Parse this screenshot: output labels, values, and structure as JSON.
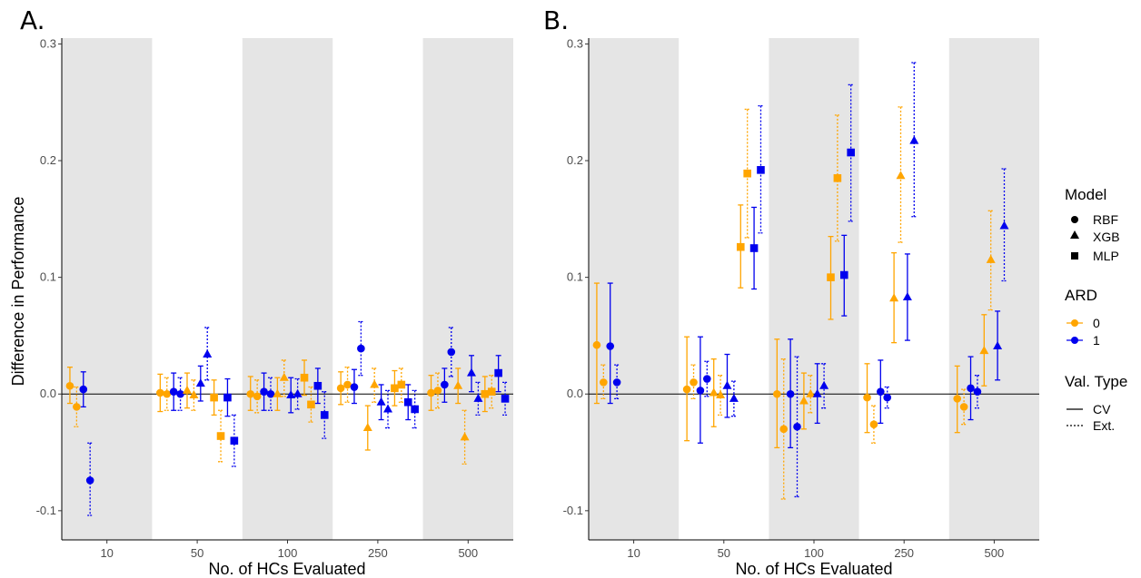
{
  "legend": {
    "model_title": "Model",
    "models": [
      {
        "label": "RBF",
        "shape": "circle"
      },
      {
        "label": "XGB",
        "shape": "triangle"
      },
      {
        "label": "MLP",
        "shape": "square"
      }
    ],
    "ard_title": "ARD",
    "ard": [
      {
        "label": "0",
        "color": "#FFA500"
      },
      {
        "label": "1",
        "color": "#0000EE"
      }
    ],
    "val_title": "Val. Type",
    "val": [
      {
        "label": "CV",
        "dash": "solid"
      },
      {
        "label": "Ext.",
        "dash": "dotted"
      }
    ]
  },
  "chart_data": [
    {
      "type": "scatter",
      "panel_tag": "A.",
      "xlabel": "No. of HCs Evaluated",
      "ylabel": "Difference in Performance",
      "categories": [
        "10",
        "50",
        "100",
        "250",
        "500"
      ],
      "ylim": [
        -0.125,
        0.305
      ],
      "yticks": [
        -0.1,
        0.0,
        0.1,
        0.2,
        0.3
      ],
      "ytick_labels": [
        "-0.1",
        "0.0",
        "0.1",
        "0.2",
        "0.3"
      ],
      "hline": 0,
      "series": [
        {
          "model": "RBF",
          "ard": "0",
          "val": "CV",
          "points": [
            {
              "x": 0,
              "y": 0.007,
              "lo": -0.008,
              "hi": 0.023
            },
            {
              "x": 1,
              "y": 0.001,
              "lo": -0.015,
              "hi": 0.017
            },
            {
              "x": 2,
              "y": 0.0,
              "lo": -0.014,
              "hi": 0.015
            },
            {
              "x": 3,
              "y": 0.005,
              "lo": -0.009,
              "hi": 0.019
            },
            {
              "x": 4,
              "y": 0.001,
              "lo": -0.014,
              "hi": 0.016
            }
          ]
        },
        {
          "model": "RBF",
          "ard": "0",
          "val": "Ext.",
          "points": [
            {
              "x": 0,
              "y": -0.011,
              "lo": -0.028,
              "hi": 0.006
            },
            {
              "x": 1,
              "y": 0.0,
              "lo": -0.014,
              "hi": 0.014
            },
            {
              "x": 2,
              "y": -0.002,
              "lo": -0.016,
              "hi": 0.012
            },
            {
              "x": 3,
              "y": 0.008,
              "lo": -0.007,
              "hi": 0.023
            },
            {
              "x": 4,
              "y": 0.003,
              "lo": -0.012,
              "hi": 0.018
            }
          ]
        },
        {
          "model": "RBF",
          "ard": "1",
          "val": "CV",
          "points": [
            {
              "x": 0,
              "y": 0.004,
              "lo": -0.011,
              "hi": 0.019
            },
            {
              "x": 1,
              "y": 0.002,
              "lo": -0.014,
              "hi": 0.018
            },
            {
              "x": 2,
              "y": 0.002,
              "lo": -0.014,
              "hi": 0.018
            },
            {
              "x": 3,
              "y": 0.006,
              "lo": -0.008,
              "hi": 0.021
            },
            {
              "x": 4,
              "y": 0.008,
              "lo": -0.007,
              "hi": 0.022
            }
          ]
        },
        {
          "model": "RBF",
          "ard": "1",
          "val": "Ext.",
          "points": [
            {
              "x": 0,
              "y": -0.074,
              "lo": -0.104,
              "hi": -0.042
            },
            {
              "x": 1,
              "y": 0.0,
              "lo": -0.014,
              "hi": 0.014
            },
            {
              "x": 2,
              "y": 0.0,
              "lo": -0.014,
              "hi": 0.014
            },
            {
              "x": 3,
              "y": 0.039,
              "lo": 0.016,
              "hi": 0.062
            },
            {
              "x": 4,
              "y": 0.036,
              "lo": 0.015,
              "hi": 0.057
            }
          ]
        },
        {
          "model": "XGB",
          "ard": "0",
          "val": "CV",
          "points": [
            {
              "x": 1,
              "y": 0.003,
              "lo": -0.012,
              "hi": 0.018
            },
            {
              "x": 2,
              "y": 0.0,
              "lo": -0.014,
              "hi": 0.014
            },
            {
              "x": 3,
              "y": -0.029,
              "lo": -0.048,
              "hi": -0.01
            },
            {
              "x": 4,
              "y": 0.007,
              "lo": -0.008,
              "hi": 0.022
            }
          ]
        },
        {
          "model": "XGB",
          "ard": "0",
          "val": "Ext.",
          "points": [
            {
              "x": 1,
              "y": -0.001,
              "lo": -0.014,
              "hi": 0.012
            },
            {
              "x": 2,
              "y": 0.014,
              "lo": -0.002,
              "hi": 0.029
            },
            {
              "x": 3,
              "y": 0.008,
              "lo": -0.007,
              "hi": 0.022
            },
            {
              "x": 4,
              "y": -0.037,
              "lo": -0.06,
              "hi": -0.014
            }
          ]
        },
        {
          "model": "XGB",
          "ard": "1",
          "val": "CV",
          "points": [
            {
              "x": 1,
              "y": 0.009,
              "lo": -0.006,
              "hi": 0.024
            },
            {
              "x": 2,
              "y": -0.001,
              "lo": -0.016,
              "hi": 0.014
            },
            {
              "x": 3,
              "y": -0.007,
              "lo": -0.022,
              "hi": 0.008
            },
            {
              "x": 4,
              "y": 0.018,
              "lo": 0.002,
              "hi": 0.033
            }
          ]
        },
        {
          "model": "XGB",
          "ard": "1",
          "val": "Ext.",
          "points": [
            {
              "x": 1,
              "y": 0.034,
              "lo": 0.012,
              "hi": 0.057
            },
            {
              "x": 2,
              "y": 0.0,
              "lo": -0.013,
              "hi": 0.013
            },
            {
              "x": 3,
              "y": -0.013,
              "lo": -0.029,
              "hi": 0.003
            },
            {
              "x": 4,
              "y": -0.004,
              "lo": -0.018,
              "hi": 0.01
            }
          ]
        },
        {
          "model": "MLP",
          "ard": "0",
          "val": "CV",
          "points": [
            {
              "x": 1,
              "y": -0.003,
              "lo": -0.018,
              "hi": 0.012
            },
            {
              "x": 2,
              "y": 0.014,
              "lo": -0.001,
              "hi": 0.029
            },
            {
              "x": 3,
              "y": 0.005,
              "lo": -0.01,
              "hi": 0.02
            },
            {
              "x": 4,
              "y": 0.0,
              "lo": -0.015,
              "hi": 0.015
            }
          ]
        },
        {
          "model": "MLP",
          "ard": "0",
          "val": "Ext.",
          "points": [
            {
              "x": 1,
              "y": -0.036,
              "lo": -0.058,
              "hi": -0.014
            },
            {
              "x": 2,
              "y": -0.009,
              "lo": -0.024,
              "hi": 0.006
            },
            {
              "x": 3,
              "y": 0.008,
              "lo": -0.007,
              "hi": 0.022
            },
            {
              "x": 4,
              "y": 0.002,
              "lo": -0.012,
              "hi": 0.016
            }
          ]
        },
        {
          "model": "MLP",
          "ard": "1",
          "val": "CV",
          "points": [
            {
              "x": 1,
              "y": -0.003,
              "lo": -0.019,
              "hi": 0.013
            },
            {
              "x": 2,
              "y": 0.007,
              "lo": -0.008,
              "hi": 0.022
            },
            {
              "x": 3,
              "y": -0.007,
              "lo": -0.022,
              "hi": 0.008
            },
            {
              "x": 4,
              "y": 0.018,
              "lo": 0.002,
              "hi": 0.033
            }
          ]
        },
        {
          "model": "MLP",
          "ard": "1",
          "val": "Ext.",
          "points": [
            {
              "x": 1,
              "y": -0.04,
              "lo": -0.062,
              "hi": -0.018
            },
            {
              "x": 2,
              "y": -0.018,
              "lo": -0.038,
              "hi": 0.002
            },
            {
              "x": 3,
              "y": -0.013,
              "lo": -0.029,
              "hi": 0.003
            },
            {
              "x": 4,
              "y": -0.004,
              "lo": -0.018,
              "hi": 0.01
            }
          ]
        }
      ]
    },
    {
      "type": "scatter",
      "panel_tag": "B.",
      "xlabel": "No. of HCs Evaluated",
      "ylabel": "",
      "categories": [
        "10",
        "50",
        "100",
        "250",
        "500"
      ],
      "ylim": [
        -0.125,
        0.305
      ],
      "yticks": [
        -0.1,
        0.0,
        0.1,
        0.2,
        0.3
      ],
      "ytick_labels": [
        "-0.1",
        "0.0",
        "0.1",
        "0.2",
        "0.3"
      ],
      "hline": 0,
      "series": [
        {
          "model": "RBF",
          "ard": "0",
          "val": "CV",
          "points": [
            {
              "x": 0,
              "y": 0.042,
              "lo": -0.008,
              "hi": 0.095
            },
            {
              "x": 1,
              "y": 0.004,
              "lo": -0.04,
              "hi": 0.049
            },
            {
              "x": 2,
              "y": 0.0,
              "lo": -0.046,
              "hi": 0.047
            },
            {
              "x": 3,
              "y": -0.003,
              "lo": -0.033,
              "hi": 0.026
            },
            {
              "x": 4,
              "y": -0.004,
              "lo": -0.033,
              "hi": 0.024
            }
          ]
        },
        {
          "model": "RBF",
          "ard": "0",
          "val": "Ext.",
          "points": [
            {
              "x": 0,
              "y": 0.01,
              "lo": -0.004,
              "hi": 0.025
            },
            {
              "x": 1,
              "y": 0.01,
              "lo": -0.004,
              "hi": 0.025
            },
            {
              "x": 2,
              "y": -0.03,
              "lo": -0.09,
              "hi": 0.03
            },
            {
              "x": 3,
              "y": -0.026,
              "lo": -0.042,
              "hi": -0.01
            },
            {
              "x": 4,
              "y": -0.011,
              "lo": -0.026,
              "hi": 0.004
            }
          ]
        },
        {
          "model": "RBF",
          "ard": "1",
          "val": "CV",
          "points": [
            {
              "x": 0,
              "y": 0.041,
              "lo": -0.008,
              "hi": 0.095
            },
            {
              "x": 1,
              "y": 0.003,
              "lo": -0.042,
              "hi": 0.049
            },
            {
              "x": 2,
              "y": 0.0,
              "lo": -0.046,
              "hi": 0.047
            },
            {
              "x": 3,
              "y": 0.002,
              "lo": -0.025,
              "hi": 0.029
            },
            {
              "x": 4,
              "y": 0.005,
              "lo": -0.022,
              "hi": 0.032
            }
          ]
        },
        {
          "model": "RBF",
          "ard": "1",
          "val": "Ext.",
          "points": [
            {
              "x": 0,
              "y": 0.01,
              "lo": -0.004,
              "hi": 0.025
            },
            {
              "x": 1,
              "y": 0.013,
              "lo": -0.002,
              "hi": 0.028
            },
            {
              "x": 2,
              "y": -0.028,
              "lo": -0.088,
              "hi": 0.032
            },
            {
              "x": 3,
              "y": -0.003,
              "lo": -0.012,
              "hi": 0.006
            },
            {
              "x": 4,
              "y": 0.002,
              "lo": -0.012,
              "hi": 0.016
            }
          ]
        },
        {
          "model": "XGB",
          "ard": "0",
          "val": "CV",
          "points": [
            {
              "x": 1,
              "y": 0.001,
              "lo": -0.028,
              "hi": 0.03
            },
            {
              "x": 2,
              "y": -0.006,
              "lo": -0.03,
              "hi": 0.018
            },
            {
              "x": 3,
              "y": 0.082,
              "lo": 0.044,
              "hi": 0.121
            },
            {
              "x": 4,
              "y": 0.037,
              "lo": 0.007,
              "hi": 0.068
            }
          ]
        },
        {
          "model": "XGB",
          "ard": "0",
          "val": "Ext.",
          "points": [
            {
              "x": 1,
              "y": -0.001,
              "lo": -0.018,
              "hi": 0.016
            },
            {
              "x": 2,
              "y": 0.0,
              "lo": -0.016,
              "hi": 0.016
            },
            {
              "x": 3,
              "y": 0.187,
              "lo": 0.13,
              "hi": 0.246
            },
            {
              "x": 4,
              "y": 0.115,
              "lo": 0.072,
              "hi": 0.157
            }
          ]
        },
        {
          "model": "XGB",
          "ard": "1",
          "val": "CV",
          "points": [
            {
              "x": 1,
              "y": 0.007,
              "lo": -0.02,
              "hi": 0.034
            },
            {
              "x": 2,
              "y": 0.0,
              "lo": -0.025,
              "hi": 0.026
            },
            {
              "x": 3,
              "y": 0.083,
              "lo": 0.046,
              "hi": 0.12
            },
            {
              "x": 4,
              "y": 0.041,
              "lo": 0.012,
              "hi": 0.071
            }
          ]
        },
        {
          "model": "XGB",
          "ard": "1",
          "val": "Ext.",
          "points": [
            {
              "x": 1,
              "y": -0.004,
              "lo": -0.019,
              "hi": 0.011
            },
            {
              "x": 2,
              "y": 0.007,
              "lo": -0.012,
              "hi": 0.026
            },
            {
              "x": 3,
              "y": 0.217,
              "lo": 0.152,
              "hi": 0.284
            },
            {
              "x": 4,
              "y": 0.144,
              "lo": 0.097,
              "hi": 0.193
            }
          ]
        },
        {
          "model": "MLP",
          "ard": "0",
          "val": "CV",
          "points": [
            {
              "x": 1,
              "y": 0.126,
              "lo": 0.091,
              "hi": 0.162
            },
            {
              "x": 2,
              "y": 0.1,
              "lo": 0.064,
              "hi": 0.135
            }
          ]
        },
        {
          "model": "MLP",
          "ard": "0",
          "val": "Ext.",
          "points": [
            {
              "x": 1,
              "y": 0.189,
              "lo": 0.134,
              "hi": 0.244
            },
            {
              "x": 2,
              "y": 0.185,
              "lo": 0.131,
              "hi": 0.239
            }
          ]
        },
        {
          "model": "MLP",
          "ard": "1",
          "val": "CV",
          "points": [
            {
              "x": 1,
              "y": 0.125,
              "lo": 0.09,
              "hi": 0.16
            },
            {
              "x": 2,
              "y": 0.102,
              "lo": 0.067,
              "hi": 0.136
            }
          ]
        },
        {
          "model": "MLP",
          "ard": "1",
          "val": "Ext.",
          "points": [
            {
              "x": 1,
              "y": 0.192,
              "lo": 0.138,
              "hi": 0.247
            },
            {
              "x": 2,
              "y": 0.207,
              "lo": 0.148,
              "hi": 0.265
            }
          ]
        }
      ]
    }
  ]
}
